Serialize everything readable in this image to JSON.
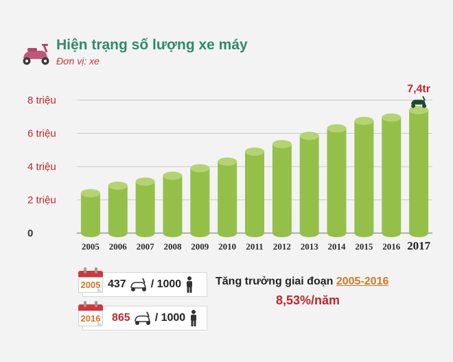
{
  "header": {
    "title": "Hiện trạng số lượng xe máy",
    "unit": "Đơn vị: xe",
    "icon": "scooter-icon"
  },
  "chart_data": {
    "type": "bar",
    "categories": [
      "2005",
      "2006",
      "2007",
      "2008",
      "2009",
      "2010",
      "2011",
      "2012",
      "2013",
      "2014",
      "2015",
      "2016",
      "2017"
    ],
    "values": [
      2.4,
      2.85,
      3.1,
      3.45,
      3.9,
      4.3,
      4.9,
      5.35,
      5.85,
      6.3,
      6.75,
      6.95,
      7.4
    ],
    "ylim": [
      0,
      8
    ],
    "yticks": [
      {
        "value": 0,
        "label": "0"
      },
      {
        "value": 2,
        "label": "2 triệu"
      },
      {
        "value": 4,
        "label": "4 triệu"
      },
      {
        "value": 6,
        "label": "6 triệu"
      },
      {
        "value": 8,
        "label": "8 triệu"
      }
    ],
    "data_labels": [
      {
        "category": "2017",
        "label": "7,4tr"
      }
    ],
    "bar_color": "#94c04a",
    "grid": true
  },
  "stats": [
    {
      "year": "2005",
      "value": "437",
      "unit": "/ 1000"
    },
    {
      "year": "2016",
      "value": "865",
      "unit": "/ 1000"
    }
  ],
  "growth": {
    "prefix": "Tăng trưởng giai đoạn",
    "period": "2005-2016",
    "rate": "8,53%/năm"
  },
  "colors": {
    "title": "#2e8b6a",
    "accent_red": "#c0262b",
    "bar": "#94c04a",
    "period": "#d07a22"
  }
}
